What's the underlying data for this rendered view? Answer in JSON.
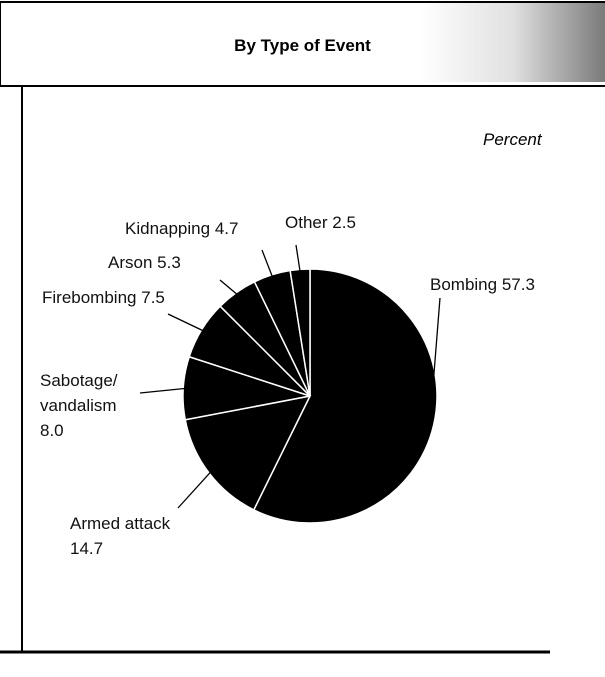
{
  "chart_data": {
    "type": "pie",
    "title": "By Type of Event",
    "subtitle": "Percent",
    "categories": [
      "Bombing",
      "Armed attack",
      "Sabotage/ vandalism",
      "Firebombing",
      "Arson",
      "Kidnapping",
      "Other"
    ],
    "values": [
      57.3,
      14.7,
      8.0,
      7.5,
      5.3,
      4.7,
      2.5
    ],
    "value_labels": [
      "57.3",
      "14.7",
      "8.0",
      "7.5",
      "5.3",
      "4.7",
      "2.5"
    ],
    "color": "#000000"
  }
}
